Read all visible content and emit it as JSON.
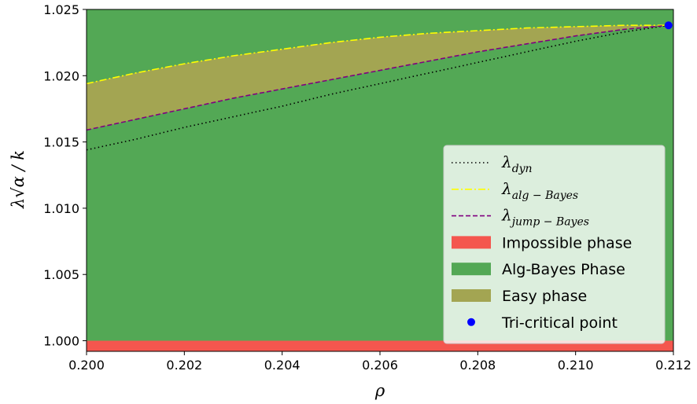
{
  "chart_data": {
    "type": "line",
    "xlabel": "ρ",
    "ylabel": "λ√α / k",
    "xlim": [
      0.2,
      0.212
    ],
    "ylim": [
      0.9992,
      1.025
    ],
    "x_ticks": [
      "0.200",
      "0.202",
      "0.204",
      "0.206",
      "0.208",
      "0.210",
      "0.212"
    ],
    "y_ticks": [
      "1.000",
      "1.005",
      "1.010",
      "1.015",
      "1.020",
      "1.025"
    ],
    "grid": false,
    "legend_position": "bottom-right",
    "x": [
      0.2,
      0.201,
      0.202,
      0.203,
      0.204,
      0.205,
      0.206,
      0.207,
      0.208,
      0.209,
      0.21,
      0.211,
      0.2119
    ],
    "series": [
      {
        "name": "λdyn",
        "label_main": "λ",
        "label_sub": "dyn",
        "style": "dotted",
        "color": "#000000",
        "values": [
          1.0144,
          1.0152,
          1.0161,
          1.0169,
          1.0177,
          1.0186,
          1.0194,
          1.0202,
          1.021,
          1.0218,
          1.0226,
          1.0233,
          1.0238
        ]
      },
      {
        "name": "λalg−Bayes",
        "label_main": "λ",
        "label_sub": "alg − Bayes",
        "style": "dashdot",
        "color": "#ffff00",
        "values": [
          1.0194,
          1.0202,
          1.0209,
          1.0215,
          1.022,
          1.0225,
          1.0229,
          1.0232,
          1.0234,
          1.0236,
          1.0237,
          1.0238,
          1.0238
        ]
      },
      {
        "name": "λjump−Bayes",
        "label_main": "λ",
        "label_sub": "jump − Bayes",
        "style": "dashed",
        "color": "#800080",
        "values": [
          1.0159,
          1.0167,
          1.0175,
          1.0183,
          1.019,
          1.0197,
          1.0204,
          1.0211,
          1.0218,
          1.0224,
          1.023,
          1.0235,
          1.0238
        ]
      }
    ],
    "regions": [
      {
        "name": "Impossible phase",
        "color": "#f4564e",
        "y_from": 0.9992,
        "y_to": 1.0
      },
      {
        "name": "Alg-Bayes Phase",
        "color": "#53a855",
        "y_from": 1.0,
        "y_to": 1.025
      },
      {
        "name": "Easy phase",
        "color": "#a3a552",
        "between": [
          "λjump−Bayes",
          "λalg−Bayes"
        ]
      }
    ],
    "points": [
      {
        "name": "Tri-critical point",
        "x": 0.2119,
        "y": 1.0238,
        "color": "#0000ff"
      }
    ],
    "legend": [
      {
        "kind": "line",
        "series": 0
      },
      {
        "kind": "line",
        "series": 1
      },
      {
        "kind": "line",
        "series": 2
      },
      {
        "kind": "patch",
        "label": "Impossible phase",
        "color": "#f4564e"
      },
      {
        "kind": "patch",
        "label": "Alg-Bayes Phase",
        "color": "#53a855"
      },
      {
        "kind": "patch",
        "label": "Easy phase",
        "color": "#a3a552"
      },
      {
        "kind": "dot",
        "label": "Tri-critical point",
        "color": "#0000ff"
      }
    ]
  }
}
